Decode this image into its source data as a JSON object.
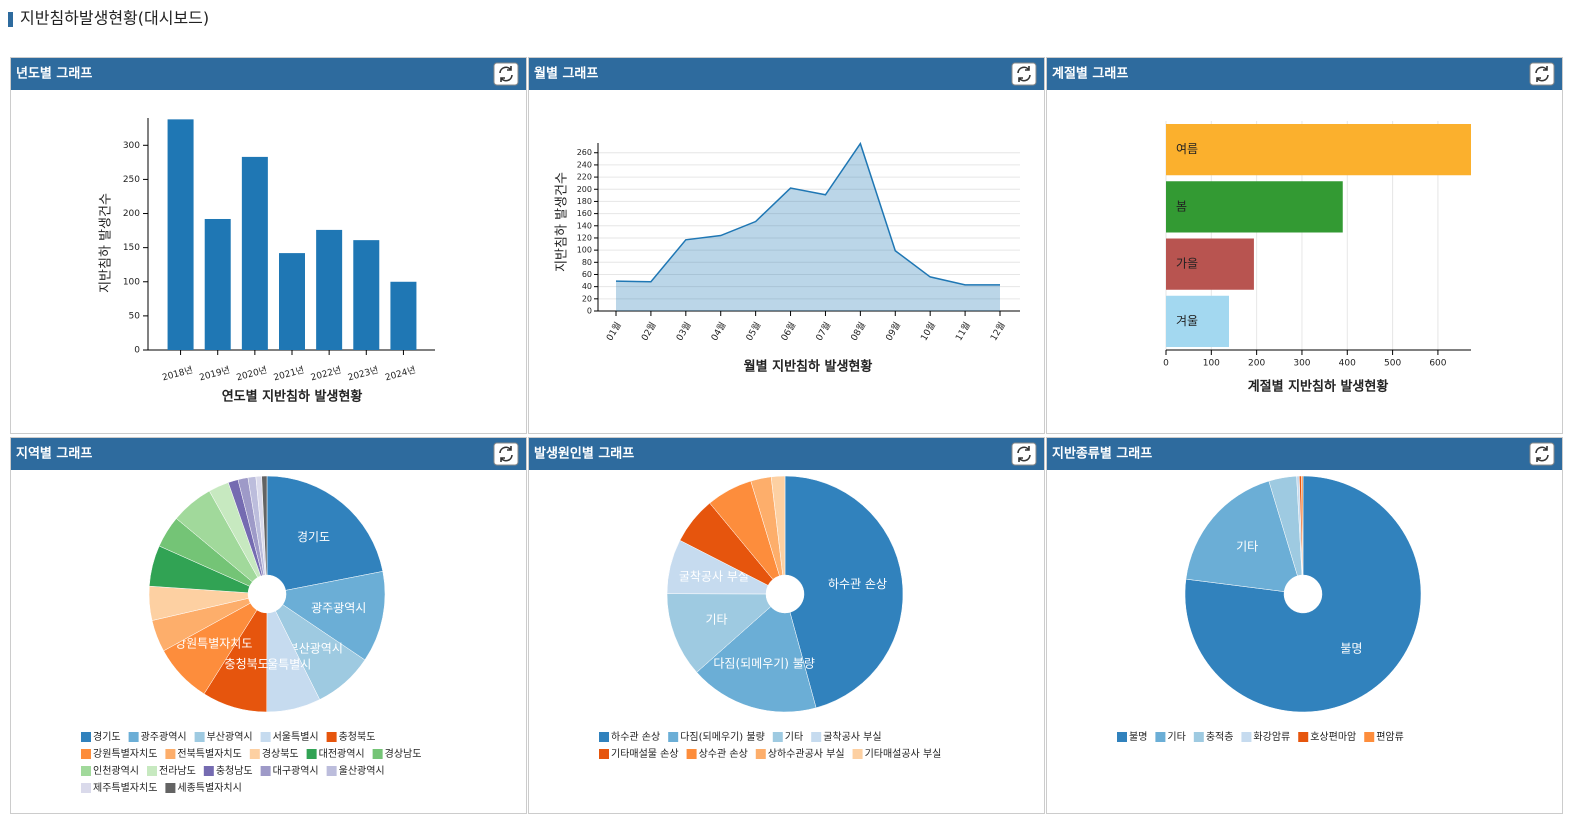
{
  "page_title": "지반침하발생현황(대시보드)",
  "chart_data": [
    {
      "type": "bar",
      "title": "년도별 그래프",
      "xlabel": "연도별 지반침하 발생현황",
      "ylabel": "지반침하 발생건수",
      "categories": [
        "2018년",
        "2019년",
        "2020년",
        "2021년",
        "2022년",
        "2023년",
        "2024년"
      ],
      "values": [
        338,
        192,
        283,
        142,
        176,
        161,
        100
      ],
      "color": "#1f77b4",
      "ylim": [
        0,
        340
      ],
      "yticks": [
        0,
        50,
        100,
        150,
        200,
        250,
        300
      ]
    },
    {
      "type": "area",
      "title": "월별 그래프",
      "xlabel": "월별 지반침하 발생현황",
      "ylabel": "지반침하 발생건수",
      "categories": [
        "01월",
        "02월",
        "03월",
        "04월",
        "05월",
        "06월",
        "07월",
        "08월",
        "09월",
        "10월",
        "11월",
        "12월"
      ],
      "values": [
        49,
        48,
        117,
        124,
        147,
        202,
        191,
        275,
        99,
        56,
        43,
        43
      ],
      "color": "#1f77b4",
      "ylim": [
        0,
        276
      ],
      "yticks": [
        0,
        20,
        40,
        60,
        80,
        100,
        120,
        140,
        160,
        180,
        200,
        220,
        240,
        260
      ],
      "grid": true
    },
    {
      "type": "hbar",
      "title": "계절별 그래프",
      "xlabel": "계절별 지반침하 발생현황",
      "categories": [
        "여름",
        "봄",
        "가을",
        "겨울"
      ],
      "values": [
        673,
        390,
        194,
        139
      ],
      "colors": [
        "#fbb02d",
        "#339a33",
        "#b85450",
        "#a3d8f0"
      ],
      "xlim": [
        0,
        673
      ],
      "xticks": [
        0,
        100,
        200,
        300,
        400,
        500,
        600
      ],
      "grid": true
    },
    {
      "type": "pie",
      "title": "지역별 그래프",
      "categories": [
        "경기도",
        "광주광역시",
        "부산광역시",
        "서울특별시",
        "충청북도",
        "강원특별자치도",
        "전북특별자치도",
        "경상북도",
        "대전광역시",
        "경상남도",
        "인천광역시",
        "전라남도",
        "충청남도",
        "대구광역시",
        "울산광역시",
        "제주특별자치도",
        "세종특별자치시"
      ],
      "values": [
        305,
        174,
        114,
        103,
        124,
        112,
        61,
        65,
        78,
        61,
        81,
        39,
        19,
        19,
        15,
        11,
        10
      ],
      "colors": [
        "#3182bd",
        "#6baed6",
        "#9ecae1",
        "#c6dbef",
        "#e6550d",
        "#fd8d3c",
        "#fdae6b",
        "#fdd0a2",
        "#31a354",
        "#74c476",
        "#a1d99b",
        "#c7e9c0",
        "#756bb1",
        "#9e9ac8",
        "#bcbddc",
        "#dadaeb",
        "#636363"
      ]
    },
    {
      "type": "pie",
      "title": "발생원인별 그래프",
      "categories": [
        "하수관 손상",
        "다짐(되메우기) 불량",
        "기타",
        "굴착공사 부실",
        "기타매설물 손상",
        "상수관 손상",
        "상하수관공사 부실",
        "기타매설공사 부실"
      ],
      "values": [
        636,
        246,
        161,
        104,
        90,
        88,
        39,
        26
      ],
      "colors": [
        "#3182bd",
        "#6baed6",
        "#9ecae1",
        "#c6dbef",
        "#e6550d",
        "#fd8d3c",
        "#fdae6b",
        "#fdd0a2"
      ]
    },
    {
      "type": "pie",
      "title": "지반종류별 그래프",
      "categories": [
        "불명",
        "기타",
        "충적층",
        "화강암류",
        "호상편마암",
        "편암류"
      ],
      "values": [
        1072,
        255,
        53,
        5,
        4,
        3
      ],
      "colors": [
        "#3182bd",
        "#6baed6",
        "#9ecae1",
        "#c6dbef",
        "#e6550d",
        "#fd8d3c"
      ]
    }
  ]
}
